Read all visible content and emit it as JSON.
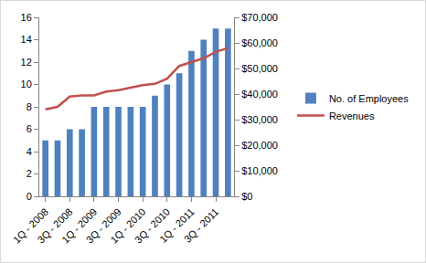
{
  "chart_data": {
    "type": "bar",
    "categories": [
      "1Q - 2008",
      null,
      "3Q - 2008",
      null,
      "1Q - 2009",
      null,
      "3Q - 2009",
      null,
      "1Q - 2010",
      null,
      "3Q - 2010",
      null,
      "1Q - 2011",
      null,
      "3Q - 2011",
      null
    ],
    "series": [
      {
        "name": "No. of Employees",
        "type": "bar",
        "color": "#4f81bd",
        "values": [
          5,
          5,
          6,
          6,
          8,
          8,
          8,
          8,
          8,
          9,
          10,
          11,
          13,
          14,
          15,
          15
        ]
      },
      {
        "name": "Revenues",
        "type": "line",
        "color": "#c0504d",
        "axis": "y2",
        "values": [
          34000,
          35000,
          39000,
          39500,
          39500,
          41000,
          41500,
          42500,
          43500,
          44000,
          46000,
          51000,
          52500,
          54000,
          56500,
          58000
        ]
      }
    ],
    "ylim": [
      0,
      16
    ],
    "yticks": [
      0,
      2,
      4,
      6,
      8,
      10,
      12,
      14,
      16
    ],
    "y2lim": [
      0,
      70000
    ],
    "y2ticks": [
      {
        "value": 0,
        "label": "$0"
      },
      {
        "value": 10000,
        "label": "$10,000"
      },
      {
        "value": 20000,
        "label": "$20,000"
      },
      {
        "value": 30000,
        "label": "$30,000"
      },
      {
        "value": 40000,
        "label": "$40,000"
      },
      {
        "value": 50000,
        "label": "$50,000"
      },
      {
        "value": 60000,
        "label": "$60,000"
      },
      {
        "value": 70000,
        "label": "$70,000"
      }
    ],
    "grid": false,
    "legend": "right"
  }
}
